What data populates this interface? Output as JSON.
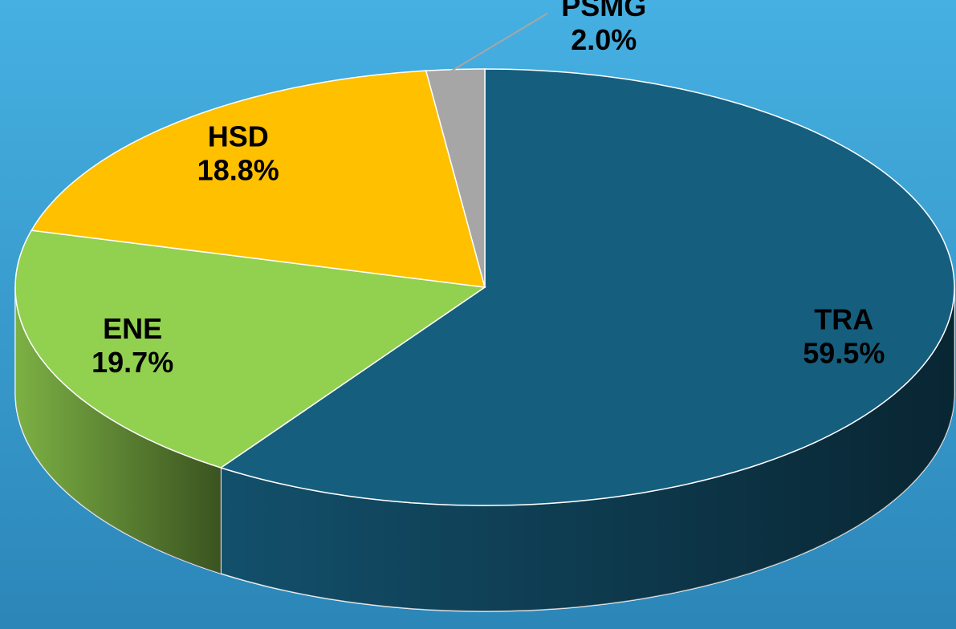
{
  "chart_data": {
    "type": "pie",
    "categories": [
      "TRA",
      "ENE",
      "HSD",
      "PSMG"
    ],
    "values": [
      59.5,
      19.7,
      18.8,
      2.0
    ],
    "value_labels": [
      "59.5%",
      "19.7%",
      "18.8%",
      "2.0%"
    ],
    "colors": [
      "#165e7e",
      "#92d050",
      "#ffc000",
      "#a6a6a6"
    ]
  }
}
